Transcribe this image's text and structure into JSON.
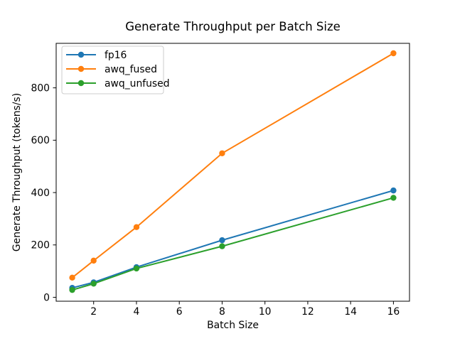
{
  "figure": {
    "background": "#ffffff"
  },
  "chart_data": {
    "type": "line",
    "title": "Generate Throughput per Batch Size",
    "xlabel": "Batch Size",
    "ylabel": "Generate Throughput (tokens/s)",
    "x": [
      1,
      2,
      4,
      8,
      16
    ],
    "series": [
      {
        "name": "fp16",
        "color": "#1f77b4",
        "values": [
          36,
          57,
          115,
          218,
          408
        ]
      },
      {
        "name": "awq_fused",
        "color": "#ff7f0e",
        "values": [
          75,
          140,
          268,
          550,
          932
        ]
      },
      {
        "name": "awq_unfused",
        "color": "#2ca02c",
        "values": [
          28,
          52,
          110,
          195,
          380
        ]
      }
    ],
    "xticks": [
      2,
      4,
      6,
      8,
      10,
      12,
      14,
      16
    ],
    "yticks": [
      0,
      200,
      400,
      600,
      800
    ],
    "xlim": [
      0.25,
      16.75
    ],
    "ylim": [
      -15,
      970
    ],
    "grid": false,
    "marker": "circle",
    "legend_position": "upper-left",
    "axis_color": "#000000",
    "legend_border_color": "#cccccc",
    "legend_background": "#ffffff"
  }
}
